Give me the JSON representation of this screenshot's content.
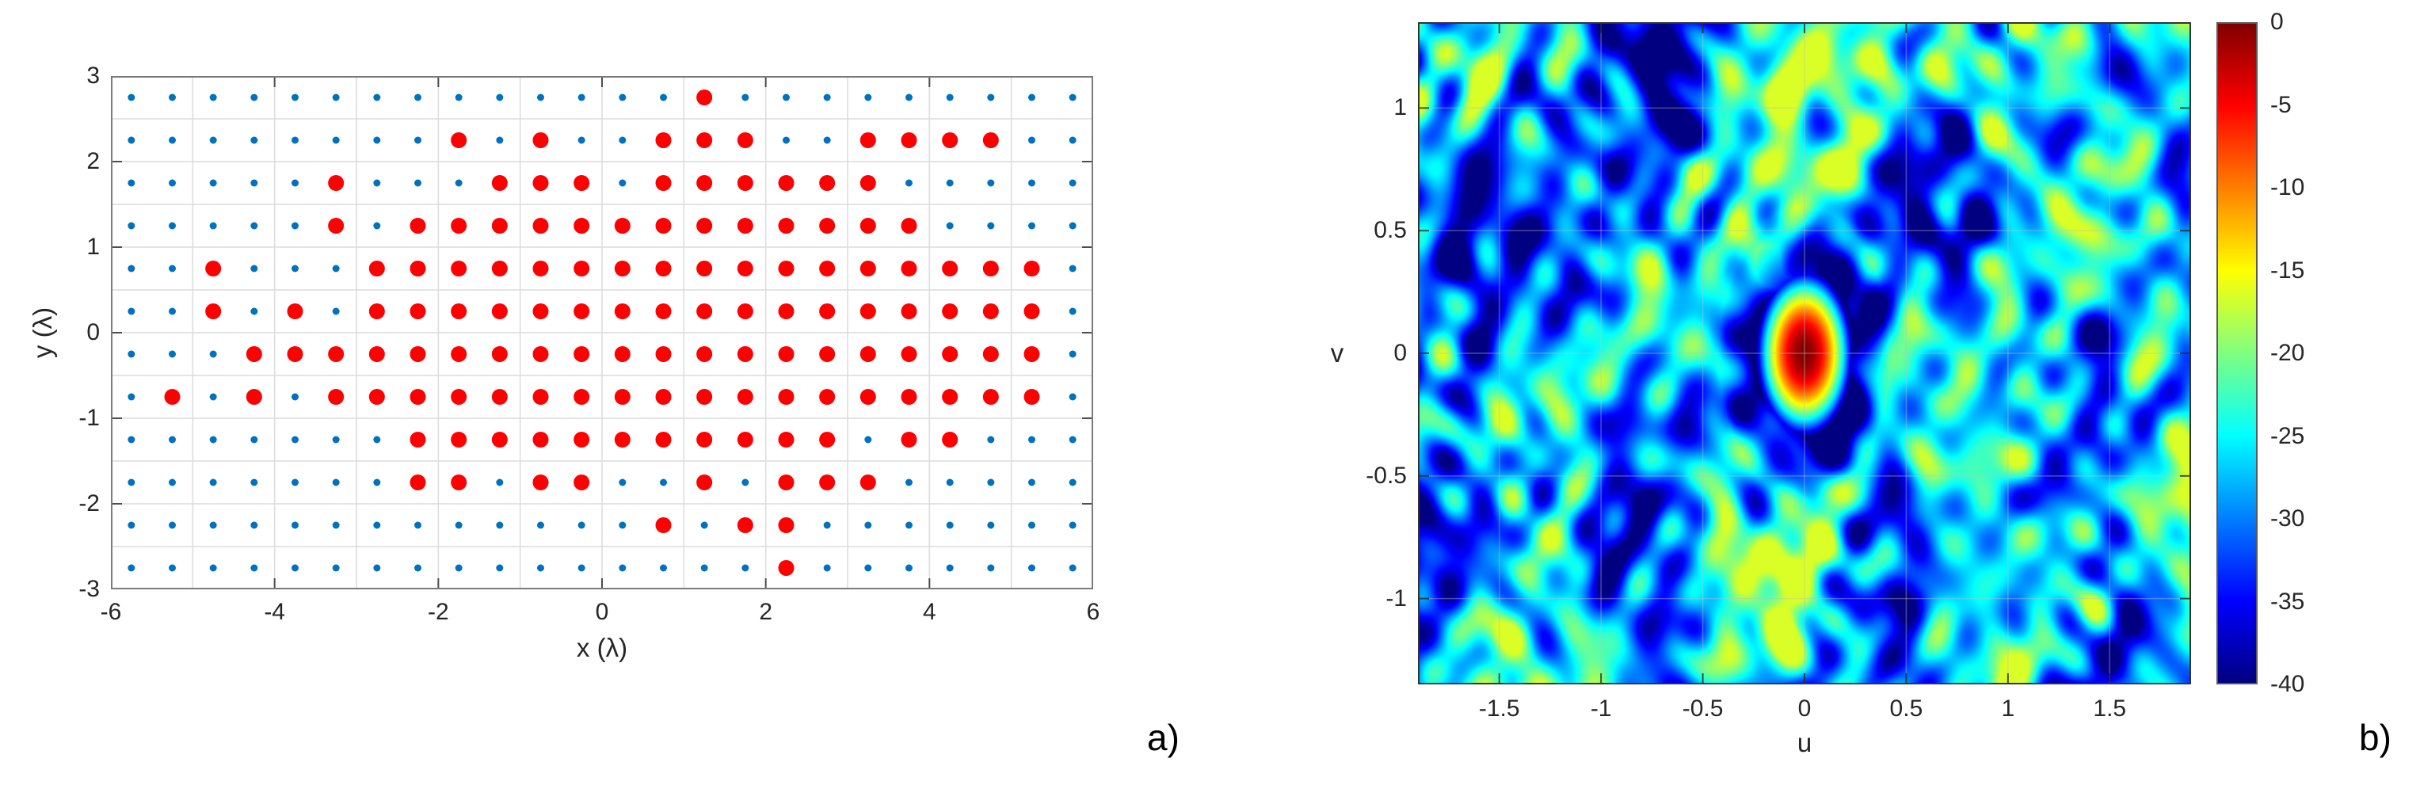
{
  "figure": {
    "panel_a_label": "a)",
    "panel_b_label": "b)",
    "background_color": "#ffffff"
  },
  "chart_data": [
    {
      "type": "scatter",
      "panel": "a",
      "description": "Planar antenna array layout: candidate element grid (small blue dots) and selected active elements (large red dots)",
      "xlabel": "x (λ)",
      "ylabel": "y (λ)",
      "xlim": [
        -6,
        6
      ],
      "ylim": [
        -3,
        3
      ],
      "xtick_values": [
        -6,
        -4,
        -2,
        0,
        2,
        4,
        6
      ],
      "xtick_labels": [
        "-6",
        "-4",
        "-2",
        "0",
        "2",
        "4",
        "6"
      ],
      "ytick_values": [
        3,
        2,
        1,
        0,
        -1,
        -2,
        -3
      ],
      "ytick_labels": [
        "3",
        "2",
        "1",
        "0",
        "-1",
        "-2",
        "-3"
      ],
      "grid": {
        "on": true,
        "x_step": 1,
        "y_step": 0.5,
        "color": "#dcdcdc"
      },
      "box_color": "#7a7a7a",
      "candidate_grid": {
        "x_min": -5.75,
        "x_max": 5.75,
        "x_step": 0.5,
        "y_min": -2.75,
        "y_max": 2.75,
        "y_step": 0.5,
        "count": 288,
        "marker_color": "#0072BD",
        "marker_radius_px": 4.5
      },
      "selected_elements": {
        "marker_color": "#ff0000",
        "marker_radius_px": 10,
        "count": 136,
        "points": [
          [
            1.25,
            2.75
          ],
          [
            -1.75,
            2.25
          ],
          [
            -0.75,
            2.25
          ],
          [
            0.75,
            2.25
          ],
          [
            1.25,
            2.25
          ],
          [
            1.75,
            2.25
          ],
          [
            3.25,
            2.25
          ],
          [
            3.75,
            2.25
          ],
          [
            4.25,
            2.25
          ],
          [
            4.75,
            2.25
          ],
          [
            -3.25,
            1.75
          ],
          [
            -1.25,
            1.75
          ],
          [
            -0.75,
            1.75
          ],
          [
            -0.25,
            1.75
          ],
          [
            0.75,
            1.75
          ],
          [
            1.25,
            1.75
          ],
          [
            1.75,
            1.75
          ],
          [
            2.25,
            1.75
          ],
          [
            2.75,
            1.75
          ],
          [
            3.25,
            1.75
          ],
          [
            -3.25,
            1.25
          ],
          [
            -2.25,
            1.25
          ],
          [
            -1.75,
            1.25
          ],
          [
            -1.25,
            1.25
          ],
          [
            -0.75,
            1.25
          ],
          [
            -0.25,
            1.25
          ],
          [
            0.25,
            1.25
          ],
          [
            0.75,
            1.25
          ],
          [
            1.25,
            1.25
          ],
          [
            1.75,
            1.25
          ],
          [
            2.25,
            1.25
          ],
          [
            2.75,
            1.25
          ],
          [
            3.25,
            1.25
          ],
          [
            3.75,
            1.25
          ],
          [
            -4.75,
            0.75
          ],
          [
            -2.75,
            0.75
          ],
          [
            -2.25,
            0.75
          ],
          [
            -1.75,
            0.75
          ],
          [
            -1.25,
            0.75
          ],
          [
            -0.75,
            0.75
          ],
          [
            -0.25,
            0.75
          ],
          [
            0.25,
            0.75
          ],
          [
            0.75,
            0.75
          ],
          [
            1.25,
            0.75
          ],
          [
            1.75,
            0.75
          ],
          [
            2.25,
            0.75
          ],
          [
            2.75,
            0.75
          ],
          [
            3.25,
            0.75
          ],
          [
            3.75,
            0.75
          ],
          [
            4.25,
            0.75
          ],
          [
            4.75,
            0.75
          ],
          [
            5.25,
            0.75
          ],
          [
            -4.75,
            0.25
          ],
          [
            -3.75,
            0.25
          ],
          [
            -2.75,
            0.25
          ],
          [
            -2.25,
            0.25
          ],
          [
            -1.75,
            0.25
          ],
          [
            -1.25,
            0.25
          ],
          [
            -0.75,
            0.25
          ],
          [
            -0.25,
            0.25
          ],
          [
            0.25,
            0.25
          ],
          [
            0.75,
            0.25
          ],
          [
            1.25,
            0.25
          ],
          [
            1.75,
            0.25
          ],
          [
            2.25,
            0.25
          ],
          [
            2.75,
            0.25
          ],
          [
            3.25,
            0.25
          ],
          [
            3.75,
            0.25
          ],
          [
            4.25,
            0.25
          ],
          [
            4.75,
            0.25
          ],
          [
            5.25,
            0.25
          ],
          [
            -4.25,
            -0.25
          ],
          [
            -3.75,
            -0.25
          ],
          [
            -3.25,
            -0.25
          ],
          [
            -2.75,
            -0.25
          ],
          [
            -2.25,
            -0.25
          ],
          [
            -1.75,
            -0.25
          ],
          [
            -1.25,
            -0.25
          ],
          [
            -0.75,
            -0.25
          ],
          [
            -0.25,
            -0.25
          ],
          [
            0.25,
            -0.25
          ],
          [
            0.75,
            -0.25
          ],
          [
            1.25,
            -0.25
          ],
          [
            1.75,
            -0.25
          ],
          [
            2.25,
            -0.25
          ],
          [
            2.75,
            -0.25
          ],
          [
            3.25,
            -0.25
          ],
          [
            3.75,
            -0.25
          ],
          [
            4.25,
            -0.25
          ],
          [
            4.75,
            -0.25
          ],
          [
            5.25,
            -0.25
          ],
          [
            -5.25,
            -0.75
          ],
          [
            -4.25,
            -0.75
          ],
          [
            -3.25,
            -0.75
          ],
          [
            -2.75,
            -0.75
          ],
          [
            -2.25,
            -0.75
          ],
          [
            -1.75,
            -0.75
          ],
          [
            -1.25,
            -0.75
          ],
          [
            -0.75,
            -0.75
          ],
          [
            -0.25,
            -0.75
          ],
          [
            0.25,
            -0.75
          ],
          [
            0.75,
            -0.75
          ],
          [
            1.25,
            -0.75
          ],
          [
            1.75,
            -0.75
          ],
          [
            2.25,
            -0.75
          ],
          [
            2.75,
            -0.75
          ],
          [
            3.25,
            -0.75
          ],
          [
            3.75,
            -0.75
          ],
          [
            4.25,
            -0.75
          ],
          [
            4.75,
            -0.75
          ],
          [
            5.25,
            -0.75
          ],
          [
            -2.25,
            -1.25
          ],
          [
            -1.75,
            -1.25
          ],
          [
            -1.25,
            -1.25
          ],
          [
            -0.75,
            -1.25
          ],
          [
            -0.25,
            -1.25
          ],
          [
            0.25,
            -1.25
          ],
          [
            0.75,
            -1.25
          ],
          [
            1.25,
            -1.25
          ],
          [
            1.75,
            -1.25
          ],
          [
            2.25,
            -1.25
          ],
          [
            2.75,
            -1.25
          ],
          [
            3.75,
            -1.25
          ],
          [
            4.25,
            -1.25
          ],
          [
            -2.25,
            -1.75
          ],
          [
            -1.75,
            -1.75
          ],
          [
            -0.75,
            -1.75
          ],
          [
            -0.25,
            -1.75
          ],
          [
            1.25,
            -1.75
          ],
          [
            2.25,
            -1.75
          ],
          [
            2.75,
            -1.75
          ],
          [
            3.25,
            -1.75
          ],
          [
            0.75,
            -2.25
          ],
          [
            1.75,
            -2.25
          ],
          [
            2.25,
            -2.25
          ],
          [
            2.25,
            -2.75
          ]
        ]
      }
    },
    {
      "type": "heatmap",
      "panel": "b",
      "description": "Normalized array beampattern in u-v space, dB scale, jet colormap",
      "xlabel": "u",
      "ylabel": "v",
      "xlim": [
        -1.9,
        1.9
      ],
      "ylim": [
        -1.35,
        1.35
      ],
      "xtick_values": [
        -1.5,
        -1,
        -0.5,
        0,
        0.5,
        1,
        1.5
      ],
      "xtick_labels": [
        "-1.5",
        "-1",
        "-0.5",
        "0",
        "0.5",
        "1",
        "1.5"
      ],
      "ytick_values": [
        1,
        0.5,
        0,
        -0.5,
        -1
      ],
      "ytick_labels": [
        "1",
        "0.5",
        "0",
        "-0.5",
        "-1"
      ],
      "colormap": "jet",
      "clim_dB": [
        -40,
        0
      ],
      "colorbar_tick_values": [
        0,
        -5,
        -10,
        -15,
        -20,
        -25,
        -30,
        -35,
        -40
      ],
      "colorbar_tick_labels": [
        "0",
        "-5",
        "-10",
        "-15",
        "-20",
        "-25",
        "-30",
        "-35",
        "-40"
      ],
      "main_lobe": {
        "u": 0,
        "v": 0,
        "peak_dB": 0,
        "half_power_radius_u": 0.09,
        "half_power_radius_v": 0.13
      },
      "sidelobes": {
        "typical_dB": -27,
        "max_dB": -17,
        "floor_dB": -40,
        "texture": "fine speckle with dark null channels",
        "null_ring_around_main_lobe": true
      },
      "grid": {
        "on": true
      }
    }
  ]
}
